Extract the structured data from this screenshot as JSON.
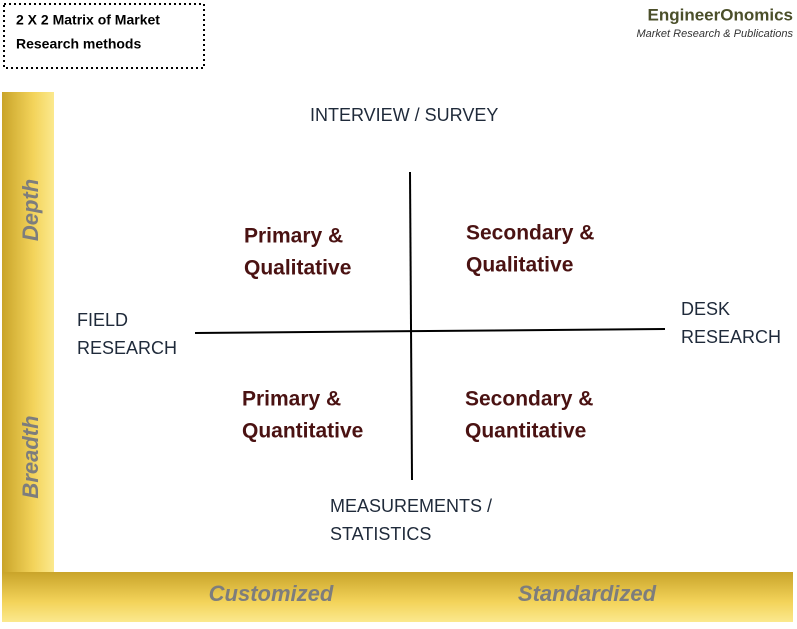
{
  "title": {
    "lines": [
      "2 X 2 Matrix of Market",
      "Research methods"
    ]
  },
  "brand": {
    "name": "EngineerOnomics",
    "tagline": "Market Research & Publications"
  },
  "axes": {
    "top": [
      "INTERVIEW / SURVEY"
    ],
    "bottom": [
      "MEASUREMENTS /",
      "STATISTICS"
    ],
    "left": [
      "FIELD",
      "RESEARCH"
    ],
    "right": [
      "DESK",
      "RESEARCH"
    ]
  },
  "quadrants": [
    [
      "Primary &",
      "Qualitative"
    ],
    [
      "Secondary &",
      "Qualitative"
    ],
    [
      "Primary &",
      "Quantitative"
    ],
    [
      "Secondary &",
      "Quantitative"
    ]
  ],
  "side_labels": [
    "Depth",
    "Breadth"
  ],
  "bottom_labels": [
    "Customized",
    "Standardized"
  ]
}
